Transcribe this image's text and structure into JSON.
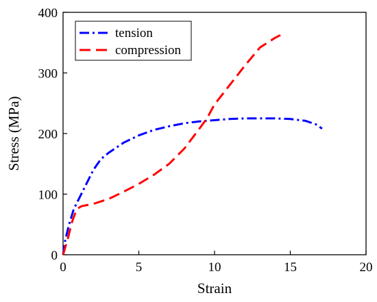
{
  "chart_data": {
    "type": "line",
    "title": "",
    "xlabel": "Strain",
    "ylabel": "Stress (MPa)",
    "xlim": [
      0,
      20
    ],
    "ylim": [
      0,
      400
    ],
    "xticks": [
      0,
      5,
      10,
      15,
      20
    ],
    "yticks": [
      0,
      100,
      200,
      300,
      400
    ],
    "grid": false,
    "legend_position": "top-left",
    "series": [
      {
        "name": "tension",
        "color": "#0000ff",
        "dash": "dash-dot",
        "x": [
          0,
          0.15,
          0.4,
          0.7,
          1.0,
          1.5,
          2.0,
          2.5,
          3.0,
          4.0,
          5.0,
          6.0,
          7.0,
          8.0,
          9.0,
          10.0,
          11.0,
          12.0,
          13.0,
          14.0,
          15.0,
          16.0,
          16.7,
          17.1
        ],
        "y": [
          0,
          25,
          50,
          75,
          90,
          115,
          140,
          158,
          168,
          185,
          197,
          206,
          212,
          217,
          220,
          222,
          224,
          225,
          225,
          225,
          224,
          221,
          215,
          208
        ]
      },
      {
        "name": "compression",
        "color": "#ff0000",
        "dash": "dash",
        "x": [
          0,
          0.3,
          0.6,
          0.9,
          1.2,
          1.6,
          2.0,
          3.0,
          4.0,
          5.0,
          6.0,
          7.0,
          8.0,
          9.0,
          9.5,
          10.0,
          11.0,
          12.0,
          13.0,
          14.0,
          14.4
        ],
        "y": [
          0,
          25,
          55,
          75,
          80,
          82,
          84,
          92,
          104,
          117,
          132,
          150,
          175,
          208,
          225,
          248,
          280,
          312,
          342,
          358,
          363
        ]
      }
    ]
  }
}
